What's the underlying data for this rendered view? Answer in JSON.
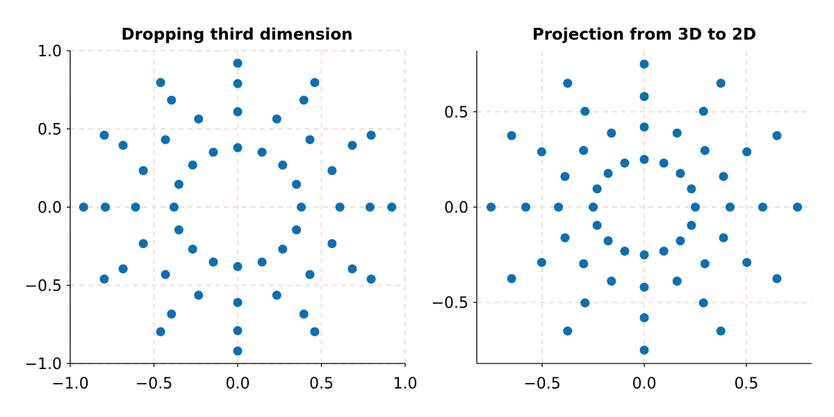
{
  "colors": {
    "point": "#0b6fb0",
    "grid": "#ecdfd2",
    "axis": "#000000"
  },
  "chart_data": [
    {
      "type": "scatter",
      "title": "Dropping third dimension",
      "xlabel": "",
      "ylabel": "",
      "xlim": [
        -1.0,
        1.0
      ],
      "ylim": [
        -1.0,
        1.0
      ],
      "xticks": [
        -1.0,
        -0.5,
        0.0,
        0.5,
        1.0
      ],
      "xtick_labels": [
        "−1.0",
        "−0.5",
        "0.0",
        "0.5",
        "1.0"
      ],
      "yticks": [
        -1.0,
        -0.5,
        0.0,
        0.5,
        1.0
      ],
      "ytick_labels": [
        "−1.0",
        "−0.5",
        "0.0",
        "0.5",
        "1.0"
      ],
      "grid": true,
      "rings": [
        {
          "radius": 0.38,
          "points": 16,
          "phase_deg": 0
        },
        {
          "radius": 0.61,
          "points": 16,
          "phase_deg": 0
        },
        {
          "radius": 0.79,
          "points": 12,
          "phase_deg": 0
        },
        {
          "radius": 0.92,
          "points": 12,
          "phase_deg": 0
        }
      ]
    },
    {
      "type": "scatter",
      "title": "Projection from 3D to 2D",
      "xlabel": "",
      "ylabel": "",
      "xlim": [
        -0.82,
        0.82
      ],
      "ylim": [
        -0.82,
        0.82
      ],
      "xticks": [
        -0.5,
        0.0,
        0.5
      ],
      "xtick_labels": [
        "−0.5",
        "0.0",
        "0.5"
      ],
      "yticks": [
        -0.5,
        0.0,
        0.5
      ],
      "ytick_labels": [
        "−0.5",
        "0.0",
        "0.5"
      ],
      "grid": true,
      "rings": [
        {
          "radius": 0.25,
          "points": 16,
          "phase_deg": 0
        },
        {
          "radius": 0.42,
          "points": 16,
          "phase_deg": 0
        },
        {
          "radius": 0.58,
          "points": 12,
          "phase_deg": 0
        },
        {
          "radius": 0.75,
          "points": 12,
          "phase_deg": 0
        }
      ]
    }
  ]
}
